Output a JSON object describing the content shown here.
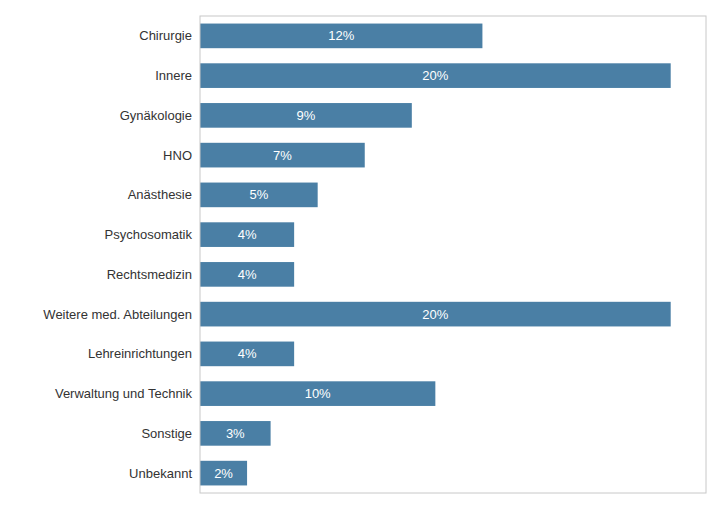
{
  "chart_data": {
    "type": "bar",
    "orientation": "horizontal",
    "categories": [
      "Chirurgie",
      "Innere",
      "Gynäkologie",
      "HNO",
      "Anästhesie",
      "Psychosomatik",
      "Rechtsmedizin",
      "Weitere med. Abteilungen",
      "Lehreinrichtungen",
      "Verwaltung und Technik",
      "Sonstige",
      "Unbekannt"
    ],
    "values": [
      12,
      20,
      9,
      7,
      5,
      4,
      4,
      20,
      4,
      10,
      3,
      2
    ],
    "value_labels": [
      "12%",
      "20%",
      "9%",
      "7%",
      "5%",
      "4%",
      "4%",
      "20%",
      "4%",
      "10%",
      "3%",
      "2%"
    ],
    "data_labels": true,
    "color": "#4a7fa5",
    "xlim": [
      0,
      21.5
    ],
    "tick_labels": "y",
    "grid": false
  }
}
